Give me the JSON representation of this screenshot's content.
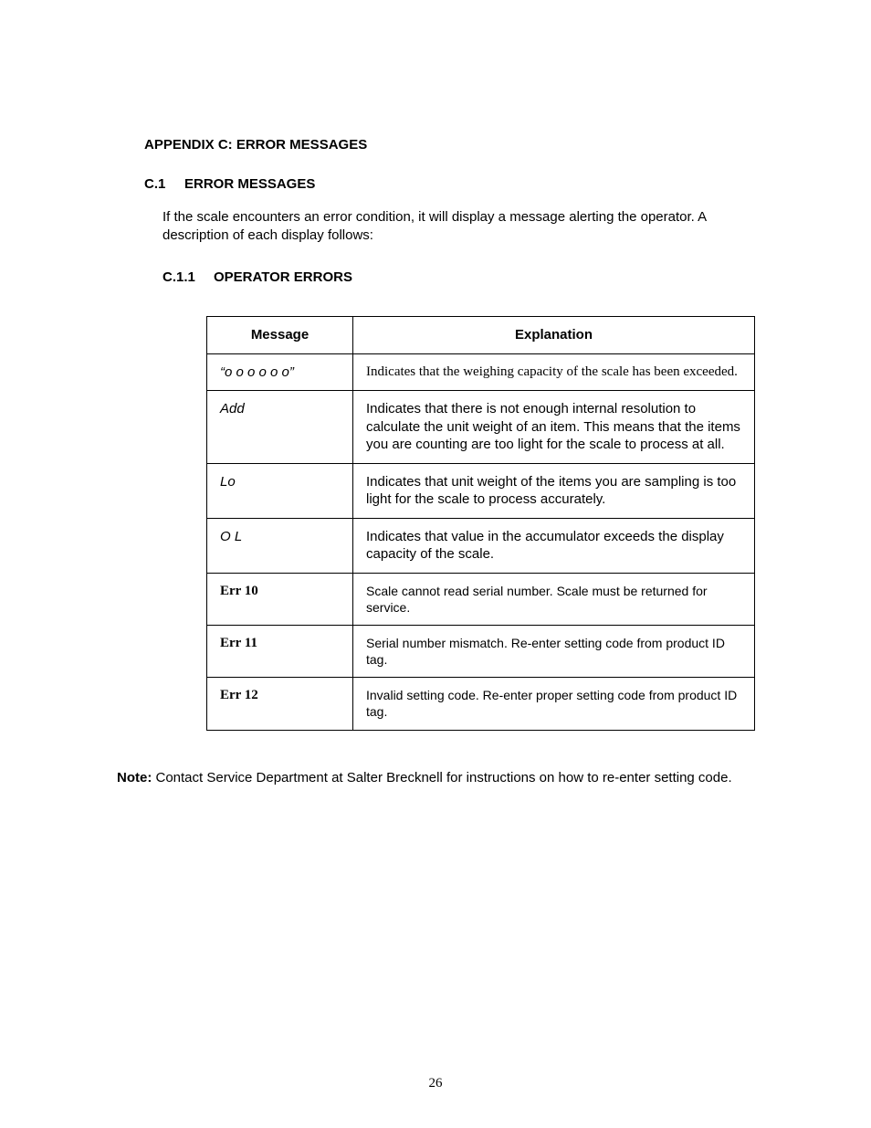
{
  "appendix_title": "APPENDIX C: ERROR MESSAGES",
  "section": {
    "number": "C.1",
    "title": "ERROR MESSAGES"
  },
  "intro_text": "If the scale encounters an error condition, it will display a message alerting the operator.  A description of each display follows:",
  "subsection": {
    "number": "C.1.1",
    "title": "OPERATOR ERRORS"
  },
  "table": {
    "headers": {
      "message": "Message",
      "explanation": "Explanation"
    },
    "rows": [
      {
        "message": "“o o o o o o”",
        "msg_style": "italic",
        "explanation": "Indicates that the weighing capacity of the scale has been exceeded.",
        "exp_style": "serif"
      },
      {
        "message": "Add",
        "msg_style": "italic",
        "explanation": "Indicates that there is not enough internal resolution to calculate the unit weight of an item. This means that the items you are counting are too light for the scale to process at all.",
        "exp_style": "sans"
      },
      {
        "message": "Lo",
        "msg_style": "italic",
        "explanation": "Indicates that unit weight of the items you are sampling is too light for the scale to process accurately.",
        "exp_style": "sans"
      },
      {
        "message": "O L",
        "msg_style": "italic",
        "explanation": "Indicates that value in the accumulator exceeds the display capacity of the scale.",
        "exp_style": "sans"
      },
      {
        "message": "Err 10",
        "msg_style": "bold-serif",
        "explanation": "Scale cannot read serial number. Scale must be returned for service.",
        "exp_style": "sans-small"
      },
      {
        "message": "Err 11",
        "msg_style": "bold-serif",
        "explanation": "Serial number mismatch. Re-enter setting code from product ID tag.",
        "exp_style": "sans-small"
      },
      {
        "message": "Err 12",
        "msg_style": "bold-serif",
        "explanation": "Invalid setting code. Re-enter proper setting code from product ID tag.",
        "exp_style": "sans-small"
      }
    ]
  },
  "note_label": "Note:",
  "note_text": " Contact Service Department at Salter Brecknell for instructions on how to re-enter setting code.",
  "page_number": "26"
}
